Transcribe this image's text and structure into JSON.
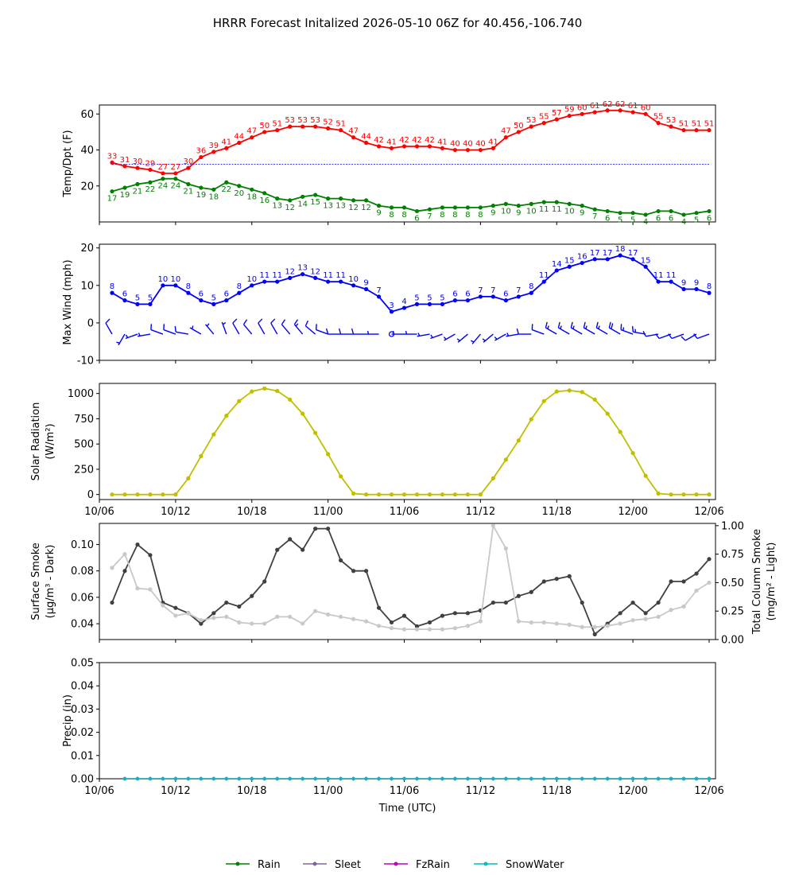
{
  "title": "HRRR Forecast Initalized 2026-05-10 06Z for 40.456,-106.740",
  "x_tick_labels": [
    "10/06",
    "10/12",
    "10/18",
    "11/00",
    "11/06",
    "11/12",
    "11/18",
    "12/00",
    "12/06"
  ],
  "x_label": "Time (UTC)",
  "legend": [
    {
      "name": "Rain",
      "color": "#008000"
    },
    {
      "name": "Sleet",
      "color": "#8064a0"
    },
    {
      "name": "FzRain",
      "color": "#bf00bf"
    },
    {
      "name": "SnowWater",
      "color": "#00bfbf"
    }
  ],
  "chart_data": [
    {
      "type": "line",
      "ylabel": "Temp/Dpt (F)",
      "xlim": [
        0,
        48.5
      ],
      "ylim": [
        0,
        65
      ],
      "yticks": [
        20,
        40,
        60
      ],
      "x": [
        1,
        2,
        3,
        4,
        5,
        6,
        7,
        8,
        9,
        10,
        11,
        12,
        13,
        14,
        15,
        16,
        17,
        18,
        19,
        20,
        21,
        22,
        23,
        24,
        25,
        26,
        27,
        28,
        29,
        30,
        31,
        32,
        33,
        34,
        35,
        36,
        37,
        38,
        39,
        40,
        41,
        42,
        43,
        44,
        45,
        46,
        47,
        48
      ],
      "reference_line": 32,
      "series": [
        {
          "color": "#ff0000",
          "labels": true,
          "values": [
            33,
            31,
            30,
            29,
            27,
            27,
            30,
            36,
            39,
            41,
            44,
            47,
            50,
            51,
            53,
            53,
            53,
            52,
            51,
            47,
            44,
            42,
            41,
            42,
            42,
            42,
            41,
            40,
            40,
            40,
            41,
            47,
            50,
            53,
            55,
            57,
            59,
            60,
            61,
            62,
            62,
            61,
            60,
            55,
            53,
            51,
            51,
            51
          ]
        },
        {
          "color": "#008000",
          "labels": true,
          "label_below": true,
          "values": [
            17,
            19,
            21,
            22,
            24,
            24,
            21,
            19,
            18,
            22,
            20,
            18,
            16,
            13,
            12,
            14,
            15,
            13,
            13,
            12,
            12,
            9,
            8,
            8,
            6,
            7,
            8,
            8,
            8,
            8,
            9,
            10,
            9,
            10,
            11,
            11,
            10,
            9,
            7,
            6,
            5,
            5,
            4,
            6,
            6,
            4,
            5,
            6
          ]
        }
      ]
    },
    {
      "type": "line",
      "ylabel": "Max Wind (mph)",
      "xlim": [
        0,
        48.5
      ],
      "ylim": [
        -10,
        21
      ],
      "yticks": [
        -10,
        0,
        10,
        20
      ],
      "x": [
        1,
        2,
        3,
        4,
        5,
        6,
        7,
        8,
        9,
        10,
        11,
        12,
        13,
        14,
        15,
        16,
        17,
        18,
        19,
        20,
        21,
        22,
        23,
        24,
        25,
        26,
        27,
        28,
        29,
        30,
        31,
        32,
        33,
        34,
        35,
        36,
        37,
        38,
        39,
        40,
        41,
        42,
        43,
        44,
        45,
        46,
        47,
        48
      ],
      "series": [
        {
          "color": "#0000ff",
          "labels": true,
          "values": [
            8,
            6,
            5,
            5,
            10,
            10,
            8,
            6,
            5,
            6,
            8,
            10,
            11,
            11,
            12,
            13,
            12,
            11,
            11,
            10,
            9,
            7,
            3,
            4,
            5,
            5,
            5,
            6,
            6,
            7,
            7,
            6,
            7,
            8,
            11,
            14,
            15,
            16,
            17,
            17,
            18,
            17,
            15,
            11,
            11,
            9,
            9,
            8
          ]
        }
      ],
      "barb_dirs_deg": [
        330,
        210,
        250,
        260,
        290,
        290,
        280,
        300,
        320,
        340,
        330,
        320,
        330,
        330,
        320,
        320,
        310,
        290,
        270,
        270,
        270,
        270,
        0,
        270,
        270,
        260,
        250,
        240,
        230,
        220,
        230,
        240,
        260,
        270,
        290,
        300,
        300,
        300,
        300,
        300,
        300,
        290,
        280,
        260,
        250,
        250,
        240,
        250
      ]
    },
    {
      "type": "line",
      "ylabel": "Solar Radiation (W/m²)",
      "ylabel_lines": [
        "Solar Radiation",
        "(W/m²)"
      ],
      "xlim": [
        0,
        48.5
      ],
      "ylim": [
        -50,
        1100
      ],
      "yticks": [
        0,
        250,
        500,
        750,
        1000
      ],
      "x": [
        1,
        2,
        3,
        4,
        5,
        6,
        7,
        8,
        9,
        10,
        11,
        12,
        13,
        14,
        15,
        16,
        17,
        18,
        19,
        20,
        21,
        22,
        23,
        24,
        25,
        26,
        27,
        28,
        29,
        30,
        31,
        32,
        33,
        34,
        35,
        36,
        37,
        38,
        39,
        40,
        41,
        42,
        43,
        44,
        45,
        46,
        47,
        48
      ],
      "series": [
        {
          "color": "#bfbf00",
          "values": [
            0,
            0,
            0,
            0,
            0,
            0,
            160,
            380,
            595,
            780,
            925,
            1020,
            1050,
            1025,
            940,
            800,
            610,
            400,
            180,
            10,
            0,
            0,
            0,
            0,
            0,
            0,
            0,
            0,
            0,
            0,
            160,
            345,
            535,
            745,
            925,
            1020,
            1030,
            1015,
            940,
            800,
            620,
            410,
            185,
            10,
            0,
            0,
            0,
            0
          ]
        }
      ]
    },
    {
      "type": "line",
      "ylabel": "Surface Smoke (μg/m³ - Dark)",
      "ylabel_lines": [
        "Surface Smoke",
        "(μg/m³ - Dark)"
      ],
      "ylabel_right": "Total Column Smoke (mg/m² - Light)",
      "ylabel_right_lines": [
        "Total Column Smoke",
        "(mg/m² - Light)"
      ],
      "xlim": [
        0,
        48.5
      ],
      "ylim": [
        0.028,
        0.116
      ],
      "yticks": [
        0.04,
        0.06,
        0.08,
        0.1
      ],
      "ylim_right": [
        0,
        1.02
      ],
      "yticks_right": [
        0.0,
        0.25,
        0.5,
        0.75,
        1.0
      ],
      "x": [
        1,
        2,
        3,
        4,
        5,
        6,
        7,
        8,
        9,
        10,
        11,
        12,
        13,
        14,
        15,
        16,
        17,
        18,
        19,
        20,
        21,
        22,
        23,
        24,
        25,
        26,
        27,
        28,
        29,
        30,
        31,
        32,
        33,
        34,
        35,
        36,
        37,
        38,
        39,
        40,
        41,
        42,
        43,
        44,
        45,
        46,
        47,
        48
      ],
      "series": [
        {
          "name": "Surface Smoke",
          "color": "#404040",
          "axis": "left",
          "values": [
            0.056,
            0.08,
            0.1,
            0.092,
            0.056,
            0.052,
            0.048,
            0.04,
            0.048,
            0.056,
            0.053,
            0.061,
            0.072,
            0.096,
            0.104,
            0.096,
            0.112,
            0.112,
            0.088,
            0.08,
            0.08,
            0.052,
            0.041,
            0.046,
            0.038,
            0.041,
            0.046,
            0.048,
            0.048,
            0.05,
            0.056,
            0.056,
            0.061,
            0.064,
            0.072,
            0.074,
            0.076,
            0.056,
            0.032,
            0.04,
            0.048,
            0.056,
            0.048,
            0.056,
            0.072,
            0.072,
            0.078,
            0.089
          ]
        },
        {
          "name": "Total Column Smoke",
          "color": "#c8c8c8",
          "axis": "right",
          "values": [
            0.63,
            0.75,
            0.45,
            0.44,
            0.3,
            0.21,
            0.23,
            0.17,
            0.19,
            0.2,
            0.15,
            0.14,
            0.14,
            0.2,
            0.2,
            0.14,
            0.25,
            0.22,
            0.2,
            0.18,
            0.16,
            0.12,
            0.1,
            0.09,
            0.09,
            0.09,
            0.09,
            0.1,
            0.12,
            0.16,
            1.0,
            0.8,
            0.16,
            0.15,
            0.15,
            0.14,
            0.13,
            0.11,
            0.11,
            0.12,
            0.14,
            0.17,
            0.18,
            0.2,
            0.26,
            0.29,
            0.43,
            0.5
          ]
        }
      ]
    },
    {
      "type": "line",
      "ylabel": "Precip (in)",
      "xlim": [
        0,
        48.5
      ],
      "ylim": [
        0,
        0.05
      ],
      "yticks": [
        0.0,
        0.01,
        0.02,
        0.03,
        0.04,
        0.05
      ],
      "x": [
        2,
        3,
        4,
        5,
        6,
        7,
        8,
        9,
        10,
        11,
        12,
        13,
        14,
        15,
        16,
        17,
        18,
        19,
        20,
        21,
        22,
        23,
        24,
        25,
        26,
        27,
        28,
        29,
        30,
        31,
        32,
        33,
        34,
        35,
        36,
        37,
        38,
        39,
        40,
        41,
        42,
        43,
        44,
        45,
        46,
        47,
        48
      ],
      "series": [
        {
          "name": "Rain",
          "color": "#008000",
          "values": [
            0,
            0,
            0,
            0,
            0,
            0,
            0,
            0,
            0,
            0,
            0,
            0,
            0,
            0,
            0,
            0,
            0,
            0,
            0,
            0,
            0,
            0,
            0,
            0,
            0,
            0,
            0,
            0,
            0,
            0,
            0,
            0,
            0,
            0,
            0,
            0,
            0,
            0,
            0,
            0,
            0,
            0,
            0,
            0,
            0,
            0,
            0
          ]
        },
        {
          "name": "Sleet",
          "color": "#8064a0",
          "values": [
            0,
            0,
            0,
            0,
            0,
            0,
            0,
            0,
            0,
            0,
            0,
            0,
            0,
            0,
            0,
            0,
            0,
            0,
            0,
            0,
            0,
            0,
            0,
            0,
            0,
            0,
            0,
            0,
            0,
            0,
            0,
            0,
            0,
            0,
            0,
            0,
            0,
            0,
            0,
            0,
            0,
            0,
            0,
            0,
            0,
            0,
            0
          ]
        },
        {
          "name": "FzRain",
          "color": "#bf00bf",
          "values": [
            0,
            0,
            0,
            0,
            0,
            0,
            0,
            0,
            0,
            0,
            0,
            0,
            0,
            0,
            0,
            0,
            0,
            0,
            0,
            0,
            0,
            0,
            0,
            0,
            0,
            0,
            0,
            0,
            0,
            0,
            0,
            0,
            0,
            0,
            0,
            0,
            0,
            0,
            0,
            0,
            0,
            0,
            0,
            0,
            0,
            0,
            0
          ]
        },
        {
          "name": "SnowWater",
          "color": "#00bfbf",
          "values": [
            0,
            0,
            0,
            0,
            0,
            0,
            0,
            0,
            0,
            0,
            0,
            0,
            0,
            0,
            0,
            0,
            0,
            0,
            0,
            0,
            0,
            0,
            0,
            0,
            0,
            0,
            0,
            0,
            0,
            0,
            0,
            0,
            0,
            0,
            0,
            0,
            0,
            0,
            0,
            0,
            0,
            0,
            0,
            0,
            0,
            0,
            0
          ]
        }
      ]
    }
  ]
}
